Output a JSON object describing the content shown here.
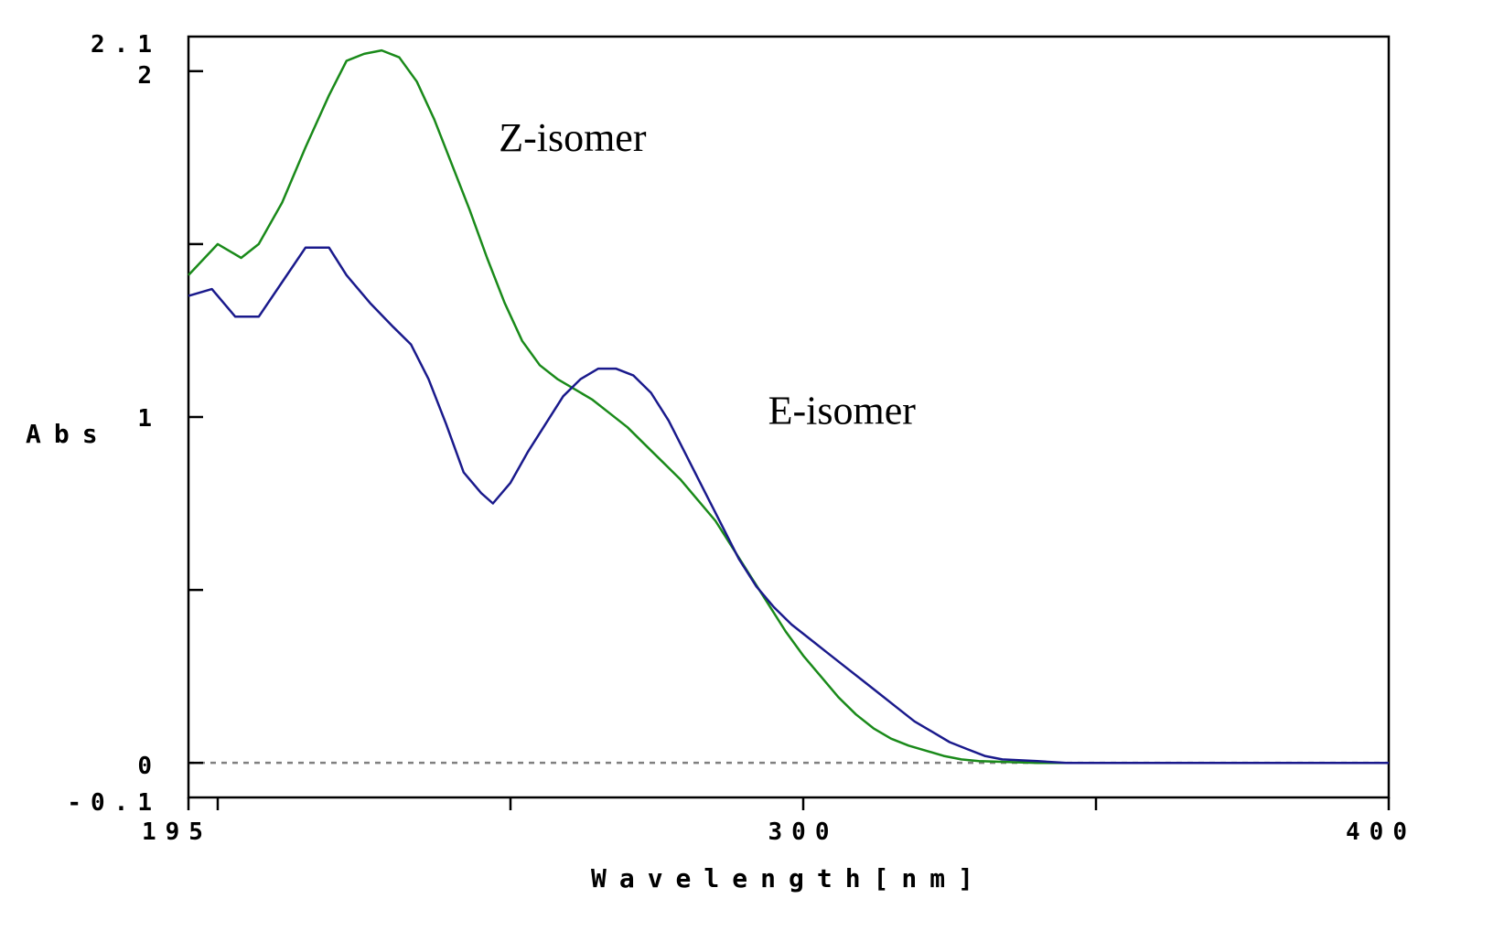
{
  "chart_data": {
    "type": "line",
    "xlabel": "Wavelength[nm]",
    "ylabel": "Abs",
    "xlim": [
      195,
      400
    ],
    "ylim": [
      -0.1,
      2.1
    ],
    "x_ticks_labeled": [
      195,
      300,
      400
    ],
    "x_ticks_minor": [
      200,
      250,
      350
    ],
    "y_ticks_labeled": [
      -0.1,
      0,
      1,
      2,
      2.1
    ],
    "y_ticks_minor": [
      0.5,
      1.5
    ],
    "grid": false,
    "baseline": {
      "y": 0,
      "style": "dashed",
      "color": "#808080"
    },
    "series": [
      {
        "name": "Z-isomer",
        "color": "#1a8a1a",
        "points": [
          [
            195,
            1.41
          ],
          [
            200,
            1.5
          ],
          [
            204,
            1.46
          ],
          [
            207,
            1.5
          ],
          [
            211,
            1.62
          ],
          [
            215,
            1.78
          ],
          [
            219,
            1.93
          ],
          [
            222,
            2.03
          ],
          [
            225,
            2.05
          ],
          [
            228,
            2.06
          ],
          [
            231,
            2.04
          ],
          [
            234,
            1.97
          ],
          [
            237,
            1.86
          ],
          [
            240,
            1.73
          ],
          [
            243,
            1.6
          ],
          [
            246,
            1.46
          ],
          [
            249,
            1.33
          ],
          [
            252,
            1.22
          ],
          [
            255,
            1.15
          ],
          [
            258,
            1.11
          ],
          [
            261,
            1.08
          ],
          [
            264,
            1.05
          ],
          [
            267,
            1.01
          ],
          [
            270,
            0.97
          ],
          [
            273,
            0.92
          ],
          [
            276,
            0.87
          ],
          [
            279,
            0.82
          ],
          [
            282,
            0.76
          ],
          [
            285,
            0.7
          ],
          [
            288,
            0.62
          ],
          [
            291,
            0.54
          ],
          [
            294,
            0.46
          ],
          [
            297,
            0.38
          ],
          [
            300,
            0.31
          ],
          [
            303,
            0.25
          ],
          [
            306,
            0.19
          ],
          [
            309,
            0.14
          ],
          [
            312,
            0.1
          ],
          [
            315,
            0.07
          ],
          [
            318,
            0.05
          ],
          [
            321,
            0.035
          ],
          [
            324,
            0.02
          ],
          [
            327,
            0.01
          ],
          [
            330,
            0.005
          ],
          [
            340,
            0.0
          ],
          [
            400,
            0.0
          ]
        ]
      },
      {
        "name": "E-isomer",
        "color": "#1a1a8c",
        "points": [
          [
            195,
            1.35
          ],
          [
            199,
            1.37
          ],
          [
            203,
            1.29
          ],
          [
            207,
            1.29
          ],
          [
            211,
            1.39
          ],
          [
            215,
            1.49
          ],
          [
            219,
            1.49
          ],
          [
            222,
            1.41
          ],
          [
            226,
            1.33
          ],
          [
            230,
            1.26
          ],
          [
            233,
            1.21
          ],
          [
            236,
            1.11
          ],
          [
            239,
            0.98
          ],
          [
            242,
            0.84
          ],
          [
            245,
            0.78
          ],
          [
            247,
            0.75
          ],
          [
            250,
            0.81
          ],
          [
            253,
            0.9
          ],
          [
            256,
            0.98
          ],
          [
            259,
            1.06
          ],
          [
            262,
            1.11
          ],
          [
            265,
            1.14
          ],
          [
            268,
            1.14
          ],
          [
            271,
            1.12
          ],
          [
            274,
            1.07
          ],
          [
            277,
            0.99
          ],
          [
            280,
            0.89
          ],
          [
            283,
            0.79
          ],
          [
            286,
            0.69
          ],
          [
            289,
            0.59
          ],
          [
            292,
            0.51
          ],
          [
            295,
            0.45
          ],
          [
            298,
            0.4
          ],
          [
            301,
            0.36
          ],
          [
            304,
            0.32
          ],
          [
            307,
            0.28
          ],
          [
            310,
            0.24
          ],
          [
            313,
            0.2
          ],
          [
            316,
            0.16
          ],
          [
            319,
            0.12
          ],
          [
            322,
            0.09
          ],
          [
            325,
            0.06
          ],
          [
            328,
            0.04
          ],
          [
            331,
            0.02
          ],
          [
            334,
            0.01
          ],
          [
            340,
            0.005
          ],
          [
            345,
            0.0
          ],
          [
            400,
            0.0
          ]
        ]
      }
    ],
    "annotations": [
      {
        "text": "Z-isomer",
        "x": 248,
        "y": 1.77
      },
      {
        "text": "E-isomer",
        "x": 294,
        "y": 0.98
      }
    ]
  }
}
